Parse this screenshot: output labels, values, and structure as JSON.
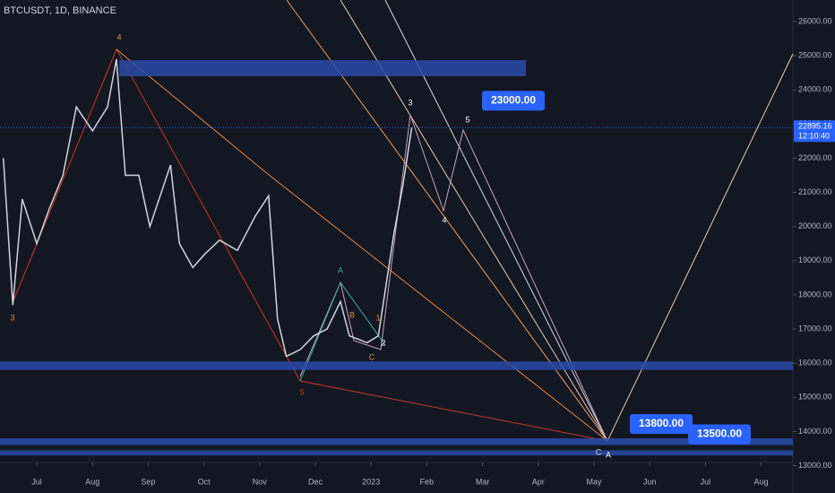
{
  "chart_data": {
    "type": "line",
    "title": "BTCUSDT, 1D, BINANCE",
    "x": [
      -0.6,
      -0.43,
      -0.26,
      0,
      0.22,
      0.47,
      0.71,
      1.0,
      1.27,
      1.43,
      1.59,
      1.83,
      2.03,
      2.4,
      2.56,
      2.8,
      3.02,
      3.28,
      3.6,
      3.92,
      4.16,
      4.32,
      4.48,
      4.73,
      4.97,
      5.21,
      5.45,
      5.61,
      5.93,
      6.13,
      6.41,
      6.57,
      6.73
    ],
    "series": [
      {
        "name": "BTCUSDT",
        "color": "#d1d4dc",
        "values": [
          22000,
          17700,
          20800,
          19500,
          20500,
          21500,
          23500,
          22800,
          23500,
          24900,
          21500,
          21500,
          20000,
          21800,
          19500,
          18800,
          19200,
          19600,
          19300,
          20300,
          20900,
          17300,
          16200,
          16400,
          16800,
          17000,
          17800,
          16800,
          16600,
          16800,
          19800,
          21200,
          22900
        ]
      }
    ],
    "xlim": [
      -0.66,
      13.57
    ],
    "xticks": [
      {
        "value": 0,
        "label": "Jul"
      },
      {
        "value": 1,
        "label": "Aug"
      },
      {
        "value": 2,
        "label": "Sep"
      },
      {
        "value": 3,
        "label": "Oct"
      },
      {
        "value": 4,
        "label": "Nov"
      },
      {
        "value": 5,
        "label": "Dec"
      },
      {
        "value": 6,
        "label": "2023"
      },
      {
        "value": 7,
        "label": "Feb"
      },
      {
        "value": 8,
        "label": "Mar"
      },
      {
        "value": 9,
        "label": "Apr"
      },
      {
        "value": 10,
        "label": "May"
      },
      {
        "value": 11,
        "label": "Jun"
      },
      {
        "value": 12,
        "label": "Jul"
      },
      {
        "value": 13,
        "label": "Aug"
      }
    ],
    "ylim": [
      12200,
      26630
    ],
    "yticks": [
      {
        "value": 13000,
        "label": "13000.00"
      },
      {
        "value": 14000,
        "label": "14000.00"
      },
      {
        "value": 15000,
        "label": "15000.00"
      },
      {
        "value": 16000,
        "label": "16000.00"
      },
      {
        "value": 17000,
        "label": "17000.00"
      },
      {
        "value": 18000,
        "label": "18000.00"
      },
      {
        "value": 19000,
        "label": "19000.00"
      },
      {
        "value": 20000,
        "label": "20000.00"
      },
      {
        "value": 21000,
        "label": "21000.00"
      },
      {
        "value": 22000,
        "label": "22000.00"
      },
      {
        "value": 23000,
        "label": "23000.00"
      },
      {
        "value": 24000,
        "label": "24000.00"
      },
      {
        "value": 25000,
        "label": "25000.00"
      },
      {
        "value": 26000,
        "label": "26000.00"
      }
    ],
    "last_price": 22895.16,
    "countdown": "12:10:40",
    "targets": [
      {
        "value": 23000,
        "label": "23000.00"
      },
      {
        "value": 13800,
        "label": "13800.00"
      },
      {
        "value": 13500,
        "label": "13500.00"
      }
    ],
    "zones": [
      {
        "from": 24400,
        "to": 24870
      },
      {
        "from": 15800,
        "to": 16050
      },
      {
        "from": 13600,
        "to": 13800
      },
      {
        "from": 13300,
        "to": 13450
      }
    ],
    "wave_labels": [
      "3",
      "4",
      "5",
      "A",
      "B",
      "C",
      "1",
      "2",
      "3",
      "4",
      "5",
      "C",
      "A"
    ]
  }
}
